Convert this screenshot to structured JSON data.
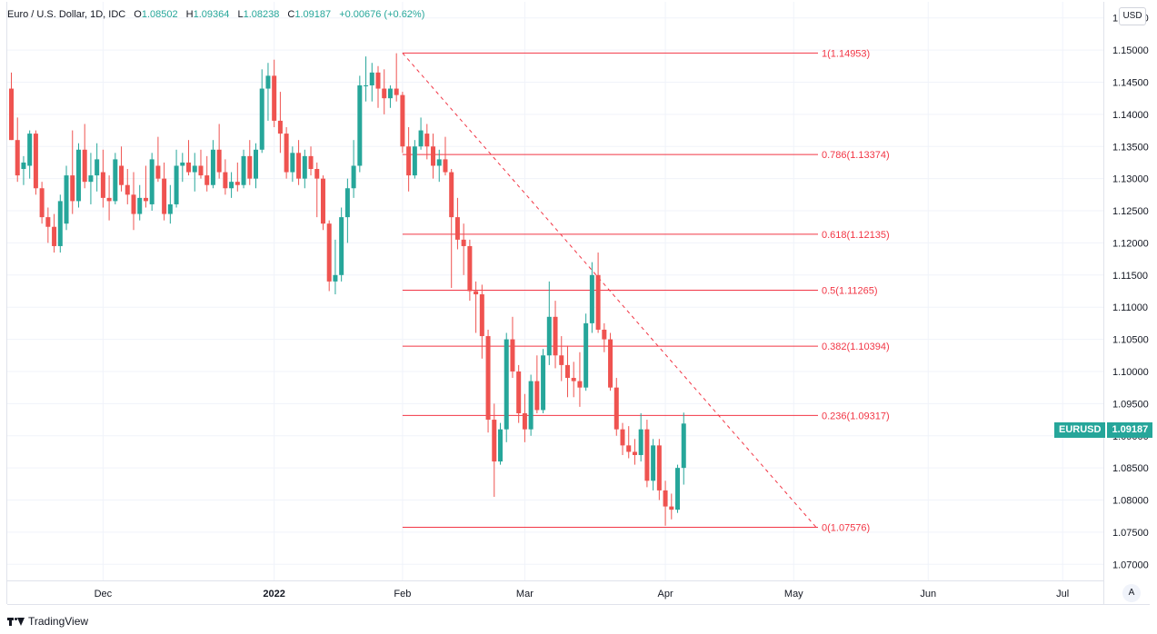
{
  "legend": {
    "title": "Euro / U.S. Dollar, 1D, IDC",
    "open_label": "O",
    "open": "1.08502",
    "high_label": "H",
    "high": "1.09364",
    "low_label": "L",
    "low": "1.08238",
    "close_label": "C",
    "close": "1.09187",
    "change": "+0.00676 (+0.62%)"
  },
  "currency_button": "USD",
  "auto_button": "A",
  "footer": {
    "brand": "TradingView"
  },
  "price_tag": {
    "symbol": "EURUSD",
    "value": "1.09187"
  },
  "colors": {
    "up": "#26a69a",
    "down": "#ef5350",
    "fib": "#f23645",
    "grid": "#f0f3fa",
    "axis_text": "#131722"
  },
  "chart_data": {
    "type": "candlestick",
    "y_ticks": [
      "1.15500",
      "1.15000",
      "1.14500",
      "1.14000",
      "1.13500",
      "1.13000",
      "1.12500",
      "1.12000",
      "1.11500",
      "1.11000",
      "1.10500",
      "1.10000",
      "1.09500",
      "1.09000",
      "1.08500",
      "1.08000",
      "1.07500",
      "1.07000"
    ],
    "ylim": [
      1.0675,
      1.1575
    ],
    "x_ticks": [
      {
        "label": "Dec",
        "bold": false,
        "idx": 15
      },
      {
        "label": "2022",
        "bold": true,
        "idx": 43
      },
      {
        "label": "Feb",
        "bold": false,
        "idx": 64
      },
      {
        "label": "Mar",
        "bold": false,
        "idx": 84
      },
      {
        "label": "Apr",
        "bold": false,
        "idx": 107
      },
      {
        "label": "May",
        "bold": false,
        "idx": 128
      },
      {
        "label": "Jun",
        "bold": false,
        "idx": 150
      },
      {
        "label": "Jul",
        "bold": false,
        "idx": 172
      }
    ],
    "candles": [
      [
        1.144,
        1.1465,
        1.136,
        1.136
      ],
      [
        1.136,
        1.1395,
        1.1295,
        1.1305
      ],
      [
        1.1315,
        1.1335,
        1.129,
        1.1325
      ],
      [
        1.132,
        1.1375,
        1.13,
        1.137
      ],
      [
        1.137,
        1.1375,
        1.1275,
        1.1285
      ],
      [
        1.1285,
        1.1295,
        1.123,
        1.124
      ],
      [
        1.124,
        1.1255,
        1.12,
        1.1225
      ],
      [
        1.1225,
        1.1245,
        1.1185,
        1.1195
      ],
      [
        1.1195,
        1.1275,
        1.1185,
        1.1265
      ],
      [
        1.123,
        1.132,
        1.122,
        1.1305
      ],
      [
        1.1305,
        1.1375,
        1.1245,
        1.1265
      ],
      [
        1.1265,
        1.1355,
        1.1255,
        1.1345
      ],
      [
        1.1345,
        1.1385,
        1.1285,
        1.1295
      ],
      [
        1.1295,
        1.134,
        1.126,
        1.1305
      ],
      [
        1.1305,
        1.1355,
        1.128,
        1.133
      ],
      [
        1.131,
        1.1345,
        1.1255,
        1.127
      ],
      [
        1.127,
        1.1305,
        1.1235,
        1.1265
      ],
      [
        1.1265,
        1.134,
        1.126,
        1.133
      ],
      [
        1.132,
        1.135,
        1.128,
        1.129
      ],
      [
        1.129,
        1.1315,
        1.126,
        1.1275
      ],
      [
        1.1275,
        1.131,
        1.122,
        1.1245
      ],
      [
        1.1245,
        1.129,
        1.1235,
        1.127
      ],
      [
        1.127,
        1.132,
        1.1255,
        1.1265
      ],
      [
        1.126,
        1.134,
        1.125,
        1.133
      ],
      [
        1.132,
        1.1365,
        1.1295,
        1.13
      ],
      [
        1.13,
        1.1325,
        1.1235,
        1.1245
      ],
      [
        1.1245,
        1.129,
        1.123,
        1.126
      ],
      [
        1.126,
        1.1345,
        1.1255,
        1.132
      ],
      [
        1.132,
        1.134,
        1.1295,
        1.1325
      ],
      [
        1.1325,
        1.136,
        1.1305,
        1.131
      ],
      [
        1.131,
        1.134,
        1.128,
        1.132
      ],
      [
        1.132,
        1.1345,
        1.13,
        1.1305
      ],
      [
        1.1305,
        1.1335,
        1.128,
        1.129
      ],
      [
        1.129,
        1.136,
        1.1285,
        1.1345
      ],
      [
        1.1345,
        1.1385,
        1.13,
        1.131
      ],
      [
        1.131,
        1.133,
        1.1275,
        1.1285
      ],
      [
        1.1285,
        1.131,
        1.127,
        1.1295
      ],
      [
        1.1295,
        1.1325,
        1.128,
        1.129
      ],
      [
        1.129,
        1.1345,
        1.1285,
        1.1335
      ],
      [
        1.1335,
        1.136,
        1.129,
        1.13
      ],
      [
        1.13,
        1.1355,
        1.1285,
        1.1345
      ],
      [
        1.1345,
        1.147,
        1.134,
        1.144
      ],
      [
        1.144,
        1.148,
        1.139,
        1.146
      ],
      [
        1.146,
        1.1485,
        1.138,
        1.139
      ],
      [
        1.139,
        1.1435,
        1.134,
        1.137
      ],
      [
        1.137,
        1.138,
        1.13,
        1.131
      ],
      [
        1.131,
        1.135,
        1.1295,
        1.134
      ],
      [
        1.134,
        1.136,
        1.129,
        1.13
      ],
      [
        1.13,
        1.1345,
        1.1285,
        1.1335
      ],
      [
        1.1335,
        1.135,
        1.1305,
        1.1315
      ],
      [
        1.1315,
        1.1325,
        1.124,
        1.13
      ],
      [
        1.13,
        1.1305,
        1.122,
        1.123
      ],
      [
        1.123,
        1.1235,
        1.1125,
        1.114
      ],
      [
        1.114,
        1.1205,
        1.112,
        1.115
      ],
      [
        1.115,
        1.1255,
        1.114,
        1.124
      ],
      [
        1.124,
        1.13,
        1.12,
        1.1285
      ],
      [
        1.1285,
        1.136,
        1.127,
        1.132
      ],
      [
        1.132,
        1.146,
        1.131,
        1.1445
      ],
      [
        1.1445,
        1.149,
        1.142,
        1.1445
      ],
      [
        1.1445,
        1.148,
        1.142,
        1.1465
      ],
      [
        1.1465,
        1.1475,
        1.141,
        1.144
      ],
      [
        1.144,
        1.147,
        1.14,
        1.1425
      ],
      [
        1.1425,
        1.1445,
        1.141,
        1.144
      ],
      [
        1.144,
        1.1495,
        1.142,
        1.143
      ],
      [
        1.143,
        1.1435,
        1.134,
        1.135
      ],
      [
        1.135,
        1.138,
        1.128,
        1.1305
      ],
      [
        1.1305,
        1.136,
        1.13,
        1.135
      ],
      [
        1.135,
        1.1395,
        1.1345,
        1.1375
      ],
      [
        1.137,
        1.1385,
        1.133,
        1.135
      ],
      [
        1.135,
        1.137,
        1.13,
        1.132
      ],
      [
        1.132,
        1.1345,
        1.1295,
        1.133
      ],
      [
        1.133,
        1.1365,
        1.1305,
        1.131
      ],
      [
        1.131,
        1.1315,
        1.113,
        1.124
      ],
      [
        1.124,
        1.127,
        1.119,
        1.1205
      ],
      [
        1.1205,
        1.123,
        1.115,
        1.1195
      ],
      [
        1.1195,
        1.1205,
        1.111,
        1.1125
      ],
      [
        1.1125,
        1.114,
        1.106,
        1.112
      ],
      [
        1.112,
        1.1135,
        1.102,
        1.1055
      ],
      [
        1.1055,
        1.1065,
        1.0905,
        1.0925
      ],
      [
        1.0925,
        1.095,
        1.0805,
        1.086
      ],
      [
        1.086,
        1.092,
        1.0855,
        1.091
      ],
      [
        1.091,
        1.106,
        1.089,
        1.105
      ],
      [
        1.105,
        1.1085,
        1.099,
        1.1
      ],
      [
        1.1,
        1.101,
        1.092,
        1.0935
      ],
      [
        1.0935,
        1.0965,
        1.089,
        1.091
      ],
      [
        1.091,
        1.0995,
        1.09,
        1.0985
      ],
      [
        1.0985,
        1.1025,
        1.0935,
        1.094
      ],
      [
        1.094,
        1.1035,
        1.0935,
        1.1025
      ],
      [
        1.1025,
        1.114,
        1.101,
        1.1085
      ],
      [
        1.1085,
        1.111,
        1.1005,
        1.1025
      ],
      [
        1.1025,
        1.1055,
        1.0985,
        1.101
      ],
      [
        1.101,
        1.104,
        1.096,
        1.099
      ],
      [
        1.099,
        1.1015,
        1.096,
        1.0985
      ],
      [
        1.0985,
        1.103,
        1.0945,
        1.0975
      ],
      [
        1.0975,
        1.109,
        1.097,
        1.1075
      ],
      [
        1.1075,
        1.117,
        1.106,
        1.115
      ],
      [
        1.115,
        1.1185,
        1.106,
        1.1065
      ],
      [
        1.1065,
        1.1075,
        1.103,
        1.105
      ],
      [
        1.105,
        1.106,
        1.097,
        1.0975
      ],
      [
        1.0975,
        1.099,
        1.09,
        1.091
      ],
      [
        1.091,
        1.092,
        1.087,
        1.0885
      ],
      [
        1.0885,
        1.0915,
        1.0865,
        1.0875
      ],
      [
        1.0875,
        1.0895,
        1.0855,
        1.087
      ],
      [
        1.087,
        1.0935,
        1.086,
        1.091
      ],
      [
        1.091,
        1.0925,
        1.082,
        1.083
      ],
      [
        1.083,
        1.0895,
        1.0815,
        1.0885
      ],
      [
        1.0885,
        1.0895,
        1.08,
        1.0815
      ],
      [
        1.0815,
        1.083,
        1.076,
        1.079
      ],
      [
        1.079,
        1.081,
        1.077,
        1.0785
      ],
      [
        1.0785,
        1.0855,
        1.078,
        1.085
      ],
      [
        1.085,
        1.0936,
        1.0824,
        1.0919
      ]
    ],
    "fib_levels": [
      {
        "label": "1(1.14953)",
        "value": 1.14953
      },
      {
        "label": "0.786(1.13374)",
        "value": 1.13374
      },
      {
        "label": "0.618(1.12135)",
        "value": 1.12135
      },
      {
        "label": "0.5(1.11265)",
        "value": 1.11265
      },
      {
        "label": "0.382(1.10394)",
        "value": 1.10394
      },
      {
        "label": "0.236(1.09317)",
        "value": 1.09317
      },
      {
        "label": "0(1.07576)",
        "value": 1.07576
      }
    ],
    "fib_start_idx": 64,
    "fib_end_idx": 145,
    "trend_line": {
      "from": {
        "idx": 64,
        "value": 1.14953
      },
      "to": {
        "idx": 145,
        "value": 1.07576
      }
    }
  }
}
